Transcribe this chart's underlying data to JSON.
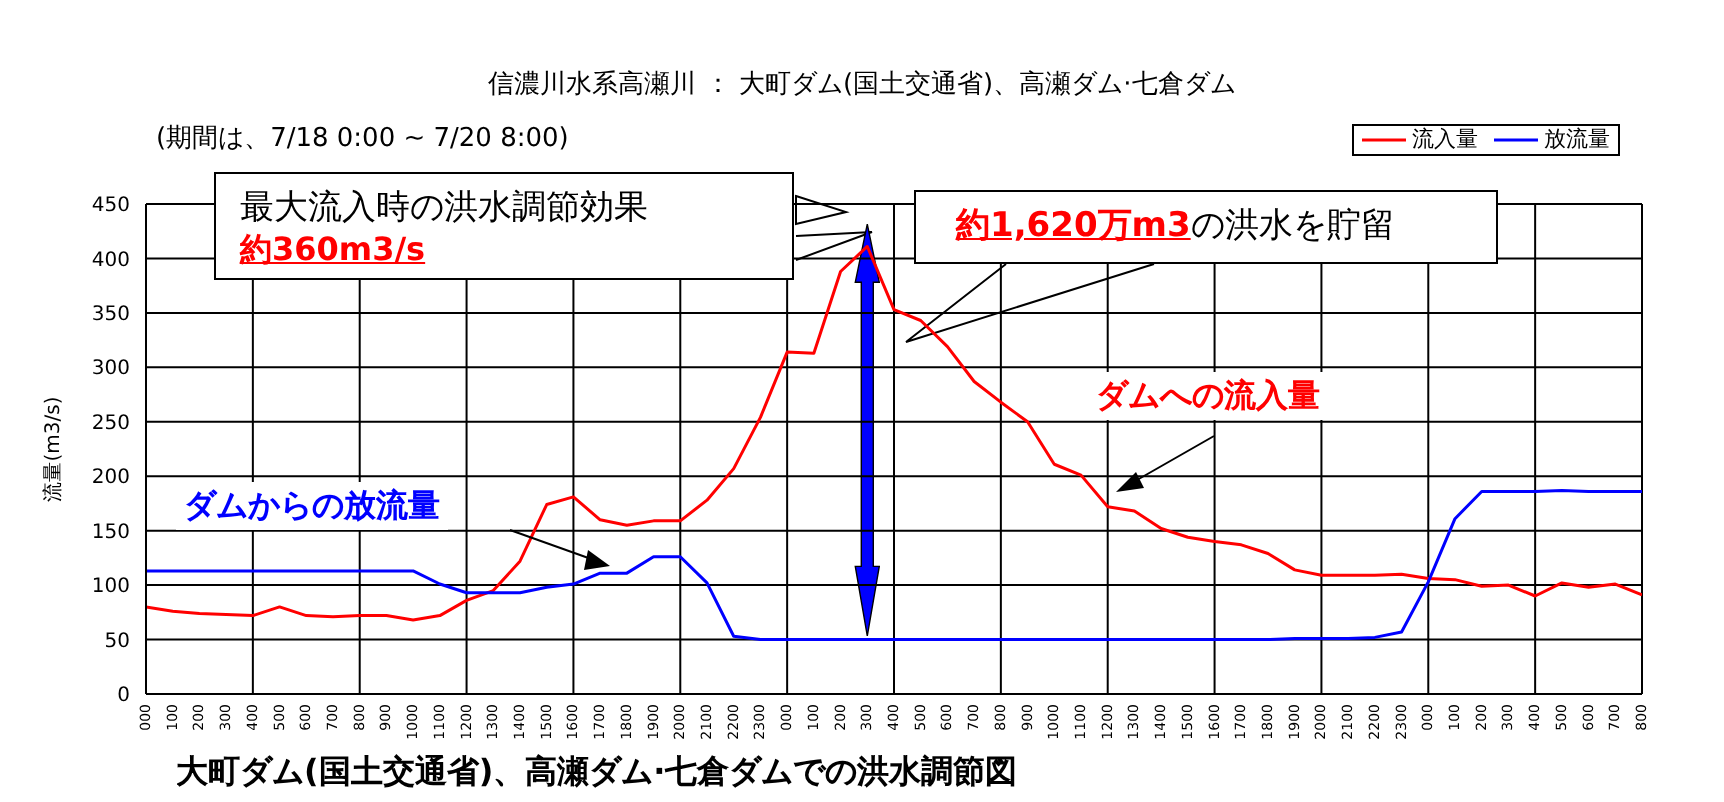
{
  "chart_data": {
    "type": "line",
    "title": "信濃川水系高瀬川 ： 大町ダム(国土交通省)、高瀬ダム·七倉ダム",
    "subtitle": "(期間は、7/18  0:00 ~ 7/20 8:00)",
    "ylabel": "流量(m3/s)",
    "annotations": [
      "最大流入時の洪水調節効果",
      "約360m3/s",
      "約1,620万m3",
      "の洪水を貯留",
      "ダムへの流入量",
      "ダムからの放流量",
      "大町ダム(国土交通省)、高瀬ダム·七倉ダムでの洪水調節図"
    ],
    "categories": [
      "000",
      "100",
      "200",
      "300",
      "400",
      "500",
      "600",
      "700",
      "800",
      "900",
      "1000",
      "1100",
      "1200",
      "1300",
      "1400",
      "1500",
      "1600",
      "1700",
      "1800",
      "1900",
      "2000",
      "2100",
      "2200",
      "2300",
      "000",
      "100",
      "200",
      "300",
      "400",
      "500",
      "600",
      "700",
      "800",
      "900",
      "1000",
      "1100",
      "1200",
      "1300",
      "1400",
      "1500",
      "1600",
      "1700",
      "1800",
      "1900",
      "2000",
      "2100",
      "2200",
      "2300",
      "000",
      "100",
      "200",
      "300",
      "400",
      "500",
      "600",
      "700",
      "800"
    ],
    "series": [
      {
        "name": "流入量",
        "color": "#ff0000",
        "values": [
          80,
          76,
          74,
          73,
          72,
          80,
          72,
          71,
          72,
          72,
          68,
          72,
          86,
          95,
          122,
          174,
          181,
          160,
          155,
          159,
          159,
          178,
          207,
          254,
          314,
          313,
          388,
          411,
          353,
          343,
          319,
          287,
          268,
          250,
          211,
          201,
          172,
          168,
          152,
          144,
          140,
          137,
          129,
          114,
          109,
          109,
          109,
          110,
          106,
          105,
          99,
          100,
          90,
          102,
          98,
          101,
          91
        ]
      },
      {
        "name": "放流量",
        "color": "#0000ff",
        "values": [
          113,
          113,
          113,
          113,
          113,
          113,
          113,
          113,
          113,
          113,
          113,
          101,
          93,
          93,
          93,
          98,
          101,
          111,
          111,
          126,
          126,
          102,
          53,
          50,
          50,
          50,
          50,
          50,
          50,
          50,
          50,
          50,
          50,
          50,
          50,
          50,
          50,
          50,
          50,
          50,
          50,
          50,
          50,
          51,
          51,
          51,
          52,
          57,
          103,
          161,
          186,
          186,
          186,
          187,
          186,
          186,
          186
        ]
      }
    ],
    "ylim": [
      0,
      450
    ],
    "yticks": [
      0,
      50,
      100,
      150,
      200,
      250,
      300,
      350,
      400,
      450
    ],
    "grid": true,
    "legend": "top right",
    "marker": "none",
    "line_style": "solid"
  }
}
